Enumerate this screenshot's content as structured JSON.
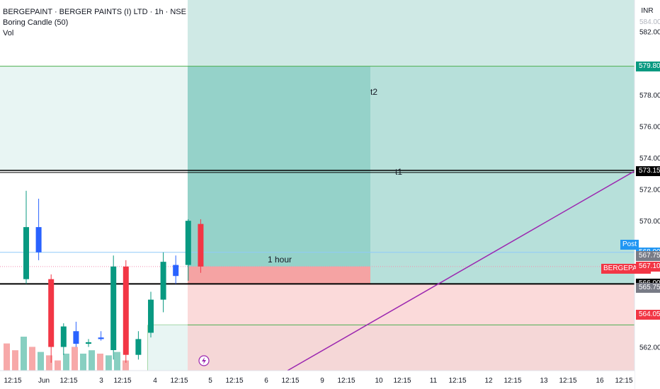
{
  "legend": {
    "title": "BERGEPAINT · BERGER PAINTS (I) LTD · 1h · NSE",
    "indicator": "Boring Candle (50)",
    "volume": "Vol"
  },
  "currency": "INR",
  "price_axis": {
    "ticks": [
      "582.00",
      "578.00",
      "576.00",
      "574.00",
      "572.00",
      "570.00",
      "562.00"
    ],
    "clipped_top": "584.00"
  },
  "price_labels": [
    {
      "id": "target2",
      "text": "579.80",
      "color": "#089981",
      "value": 579.8
    },
    {
      "id": "target1",
      "text": "573.15",
      "color": "#000000",
      "value": 573.15
    },
    {
      "id": "post",
      "text": "568.00",
      "color": "#2196f3",
      "value": 568.0
    },
    {
      "id": "high-mark",
      "text": "567.75",
      "color": "#787b86",
      "value": 567.75
    },
    {
      "id": "last",
      "text": "567.10",
      "color": "#f23645",
      "value": 567.1
    },
    {
      "id": "entry",
      "text": "566.00",
      "color": "#000000",
      "value": 566.0
    },
    {
      "id": "low-mark",
      "text": "565.75",
      "color": "#787b86",
      "value": 565.75
    },
    {
      "id": "stop",
      "text": "564.05",
      "color": "#f23645",
      "value": 564.05
    }
  ],
  "tags": {
    "post": "Post",
    "symbol": "BERGEPAINT"
  },
  "time_axis": [
    "12:15",
    "Jun",
    "12:15",
    "3",
    "12:15",
    "4",
    "12:15",
    "5",
    "12:15",
    "6",
    "12:15",
    "9",
    "12:15",
    "10",
    "12:15",
    "11",
    "12:15",
    "12",
    "12:15",
    "13",
    "12:15",
    "16",
    "12:15"
  ],
  "annotations": {
    "t2": "t2",
    "t1": "t1",
    "duration": "1 hour"
  },
  "chart_data": {
    "type": "candlestick",
    "ylim": [
      560.5,
      584.0
    ],
    "candles": [
      {
        "o": 569.6,
        "c": 566.3,
        "h": 571.9,
        "l": 566.0,
        "color": "#089981"
      },
      {
        "o": 569.6,
        "c": 568.0,
        "h": 571.4,
        "l": 567.5,
        "color": "#2962ff"
      },
      {
        "o": 566.3,
        "c": 562.0,
        "h": 566.6,
        "l": 561.0,
        "color": "#f23645"
      },
      {
        "o": 563.3,
        "c": 562.0,
        "h": 563.5,
        "l": 561.5,
        "color": "#089981"
      },
      {
        "o": 563.0,
        "c": 562.2,
        "h": 563.6,
        "l": 562.0,
        "color": "#2962ff"
      },
      {
        "o": 562.3,
        "c": 562.2,
        "h": 562.5,
        "l": 562.0,
        "color": "#089981"
      },
      {
        "o": 562.6,
        "c": 562.5,
        "h": 563.0,
        "l": 562.4,
        "color": "#2962ff"
      },
      {
        "o": 561.8,
        "c": 567.1,
        "h": 567.8,
        "l": 561.2,
        "color": "#089981"
      },
      {
        "o": 567.1,
        "c": 561.5,
        "h": 567.5,
        "l": 561.0,
        "color": "#f23645"
      },
      {
        "o": 561.5,
        "c": 562.5,
        "h": 563.0,
        "l": 561.2,
        "color": "#089981"
      },
      {
        "o": 562.9,
        "c": 565.0,
        "h": 565.5,
        "l": 562.6,
        "color": "#089981"
      },
      {
        "o": 565.0,
        "c": 567.4,
        "h": 568.0,
        "l": 564.2,
        "color": "#089981"
      },
      {
        "o": 566.5,
        "c": 567.2,
        "h": 567.8,
        "l": 566.0,
        "color": "#2962ff"
      },
      {
        "o": 567.2,
        "c": 570.0,
        "h": 570.1,
        "l": 566.2,
        "color": "#089981"
      },
      {
        "o": 569.8,
        "c": 567.1,
        "h": 570.1,
        "l": 566.7,
        "color": "#f23645"
      }
    ],
    "volume": [
      {
        "v": 0.8,
        "color": "#f7a9a9"
      },
      {
        "v": 0.6,
        "color": "#f7a9a9"
      },
      {
        "v": 1.0,
        "color": "#88cfc1"
      },
      {
        "v": 0.7,
        "color": "#f7a9a9"
      },
      {
        "v": 0.55,
        "color": "#88cfc1"
      },
      {
        "v": 0.45,
        "color": "#f7a9a9"
      },
      {
        "v": 0.3,
        "color": "#f7a9a9"
      },
      {
        "v": 0.5,
        "color": "#88cfc1"
      },
      {
        "v": 0.7,
        "color": "#f7a9a9"
      },
      {
        "v": 0.5,
        "color": "#88cfc1"
      },
      {
        "v": 0.6,
        "color": "#88cfc1"
      },
      {
        "v": 0.5,
        "color": "#f7a9a9"
      },
      {
        "v": 0.45,
        "color": "#88cfc1"
      },
      {
        "v": 0.55,
        "color": "#88cfc1"
      },
      {
        "v": 0.3,
        "color": "#f7a9a9"
      }
    ]
  }
}
